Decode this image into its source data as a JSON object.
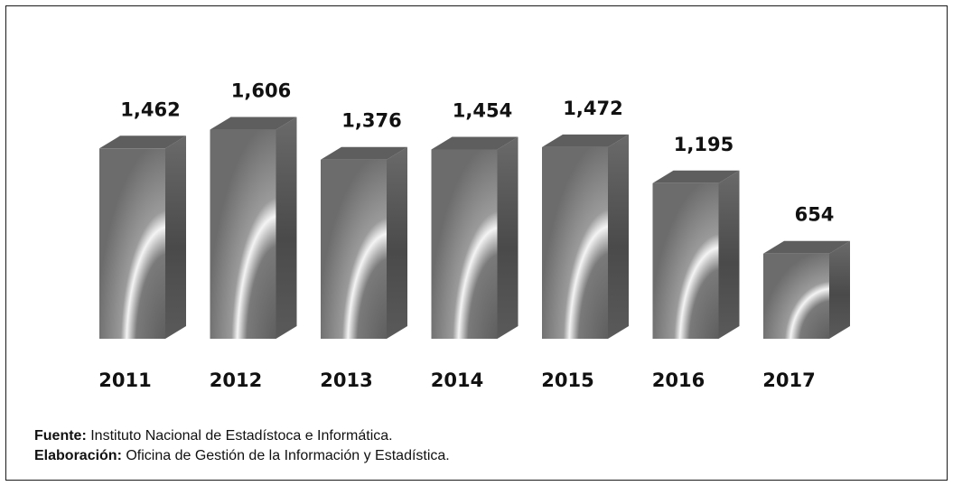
{
  "chart_data": {
    "type": "bar",
    "title": "",
    "xlabel": "",
    "ylabel": "",
    "categories": [
      "2011",
      "2012",
      "2013",
      "2014",
      "2015",
      "2016",
      "2017"
    ],
    "values": [
      1462,
      1606,
      1376,
      1454,
      1472,
      1195,
      654
    ],
    "value_labels": [
      "1,462",
      "1,606",
      "1,376",
      "1,454",
      "1,472",
      "1,195",
      "654"
    ],
    "ylim": [
      0,
      1700
    ],
    "grid": false,
    "legend": "none",
    "bar_style": "3d-gray-gradient"
  },
  "notes": {
    "source_label": "Fuente:",
    "source_text": " Instituto Nacional de Estadístoca e Informática.",
    "prepared_label": "Elaboración:",
    "prepared_text": " Oficina de Gestión de la Información y Estadística."
  },
  "colors": {
    "bar_front_dark": "#6e6e6e",
    "bar_front_light": "#f2f2f2",
    "bar_side": "#545454",
    "bar_top": "#5e5e5e",
    "text": "#111111"
  }
}
